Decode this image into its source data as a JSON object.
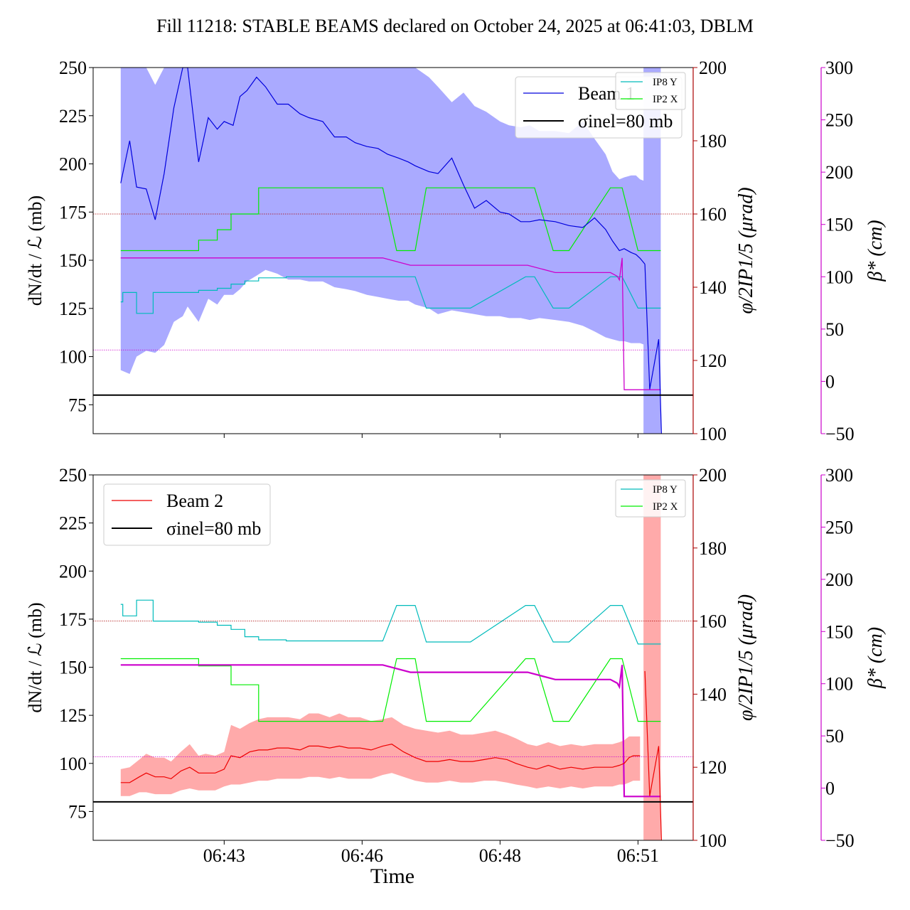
{
  "title": "Fill 11218: STABLE BEAMS declared on October 24, 2025 at 06:41:03, DBLM",
  "xlabel": "Time",
  "colors": {
    "beam1": "#0000dd",
    "beam1_band": "#aaaaff",
    "beam2": "#ee0000",
    "beam2_band": "#ffaaaa",
    "ip8y": "#00bbbb",
    "ip2x": "#00ee00",
    "phi": "#aa0000",
    "beta": "#cc00cc",
    "sigma": "#000000"
  },
  "chart_data": [
    {
      "type": "line",
      "panel": "top",
      "ylabel": "dN/dt / ℒ (mb)",
      "y2label": "φ/2IP1/5 (μrad)",
      "y3label": "β* (cm)",
      "ylim": [
        60,
        250
      ],
      "y2lim": [
        100,
        200
      ],
      "y3lim": [
        -50,
        300
      ],
      "x_ticks": [
        "06:43",
        "06:46",
        "06:48",
        "06:51"
      ],
      "x_tick_values": [
        6.5,
        8.5,
        10.5,
        12.5
      ],
      "xlim": [
        4.6,
        13.3
      ],
      "y_ticks": [
        75,
        100,
        125,
        150,
        175,
        200,
        225,
        250
      ],
      "y2_ticks": [
        100,
        120,
        140,
        160,
        180,
        200
      ],
      "y3_ticks": [
        -50,
        0,
        50,
        100,
        150,
        200,
        250,
        300
      ],
      "show_x_ticklabels": false,
      "legend": {
        "placement": "top-right",
        "entries": [
          "Beam 1",
          "σinel=80 mb"
        ]
      },
      "legend2": {
        "placement": "top-right",
        "entries": [
          "IP8 Y",
          "IP2 X"
        ]
      },
      "sigma_inel_mb": 80,
      "phi_ref_urad": 160,
      "beta_ref_cm": 30,
      "series": [
        {
          "name": "Beam 1",
          "role": "beam",
          "x": [
            5.0,
            5.13,
            5.23,
            5.37,
            5.5,
            5.63,
            5.77,
            5.9,
            5.97,
            6.13,
            6.27,
            6.4,
            6.5,
            6.63,
            6.73,
            6.83,
            6.97,
            7.1,
            7.27,
            7.43,
            7.6,
            7.73,
            7.93,
            8.1,
            8.27,
            8.4,
            8.57,
            8.73,
            8.87,
            9.03,
            9.17,
            9.27,
            9.47,
            9.6,
            9.8,
            9.97,
            10.13,
            10.3,
            10.5,
            10.63,
            10.8,
            10.93,
            11.07,
            11.3,
            11.5,
            11.7,
            11.87,
            12.03,
            12.13,
            12.23,
            12.3,
            12.4,
            12.47,
            12.53,
            12.6
          ],
          "values": [
            190,
            212,
            188,
            187,
            171,
            195,
            229,
            250,
            250,
            201,
            224,
            218,
            222,
            220,
            235,
            238,
            245,
            240,
            231,
            231,
            226,
            224,
            222,
            214,
            214,
            211,
            209,
            208,
            205,
            203,
            201,
            199,
            196,
            195,
            203,
            189,
            177,
            181,
            175,
            174,
            170,
            170,
            171,
            170,
            168,
            167,
            172,
            166,
            160,
            155,
            156,
            154,
            153,
            151,
            148
          ],
          "band_upper": [
            250,
            250,
            250,
            250,
            241,
            250,
            250,
            250,
            250,
            250,
            250,
            250,
            250,
            250,
            250,
            250,
            250,
            250,
            250,
            250,
            250,
            250,
            250,
            250,
            250,
            250,
            250,
            250,
            250,
            250,
            250,
            250,
            245,
            240,
            232,
            237,
            230,
            227,
            222,
            220,
            219,
            220,
            217,
            217,
            216,
            222,
            213,
            205,
            196,
            192,
            193,
            194,
            194,
            192,
            191
          ],
          "band_lower": [
            93,
            91,
            100,
            103,
            102,
            106,
            118,
            121,
            126,
            118,
            130,
            127,
            132,
            132,
            135,
            139,
            142,
            145,
            143,
            140,
            140,
            139,
            139,
            136,
            135,
            134,
            132,
            131,
            130,
            129,
            129,
            127,
            125,
            122,
            124,
            123,
            122,
            121,
            121,
            120,
            120,
            119,
            120,
            119,
            118,
            116,
            113,
            110,
            109,
            108,
            108,
            107,
            107,
            107,
            106
          ]
        },
        {
          "name": "IP8 Y",
          "role": "beta",
          "axis": "y3",
          "x": [
            5.0,
            5.03,
            5.03,
            5.23,
            5.23,
            5.47,
            5.47,
            5.7,
            5.7,
            6.13,
            6.13,
            6.4,
            6.4,
            6.6,
            6.6,
            6.8,
            6.8,
            7.0,
            7.0,
            7.4,
            7.4,
            8.8,
            9.0,
            9.27,
            9.43,
            10.07,
            10.87,
            11.0,
            11.27,
            11.5,
            12.1,
            12.27,
            12.5,
            12.83
          ],
          "values": [
            76,
            76,
            85,
            85,
            65,
            65,
            85,
            85,
            85,
            85,
            87,
            87,
            89,
            89,
            93,
            93,
            96,
            96,
            99,
            99,
            100,
            100,
            100,
            100,
            70,
            70,
            100,
            100,
            70,
            70,
            100,
            100,
            70,
            70
          ]
        },
        {
          "name": "IP2 X",
          "role": "beta",
          "axis": "y3",
          "x": [
            5.0,
            5.03,
            5.03,
            5.23,
            5.23,
            5.47,
            5.47,
            5.7,
            5.7,
            6.13,
            6.13,
            6.4,
            6.4,
            6.6,
            6.6,
            6.8,
            6.8,
            7.0,
            7.0,
            7.4,
            7.4,
            8.8,
            9.0,
            9.27,
            9.43,
            10.07,
            10.87,
            11.0,
            11.27,
            11.5,
            12.1,
            12.27,
            12.5,
            12.83
          ],
          "values": [
            125,
            125,
            125,
            125,
            125,
            125,
            125,
            125,
            125,
            125,
            135,
            135,
            145,
            145,
            160,
            160,
            160,
            160,
            185,
            185,
            185,
            185,
            125,
            125,
            185,
            185,
            185,
            185,
            125,
            125,
            185,
            185,
            125,
            125
          ]
        },
        {
          "name": "",
          "role": "phi",
          "x": [
            5.0,
            8.8,
            9.2,
            10.9,
            11.3,
            12.1,
            12.2,
            12.23,
            12.27,
            12.3,
            12.37,
            12.83
          ],
          "values": [
            148,
            148,
            146,
            146,
            144,
            144,
            143,
            142,
            148,
            112,
            112,
            112
          ]
        }
      ]
    },
    {
      "type": "line",
      "panel": "bottom",
      "ylabel": "dN/dt / ℒ (mb)",
      "y2label": "φ/2IP1/5 (μrad)",
      "y3label": "β* (cm)",
      "ylim": [
        60,
        250
      ],
      "y2lim": [
        100,
        200
      ],
      "y3lim": [
        -50,
        300
      ],
      "x_ticks": [
        "06:43",
        "06:46",
        "06:48",
        "06:51"
      ],
      "x_tick_values": [
        6.5,
        8.5,
        10.5,
        12.5
      ],
      "xlim": [
        4.6,
        13.3
      ],
      "y_ticks": [
        75,
        100,
        125,
        150,
        175,
        200,
        225,
        250
      ],
      "y2_ticks": [
        100,
        120,
        140,
        160,
        180,
        200
      ],
      "y3_ticks": [
        -50,
        0,
        50,
        100,
        150,
        200,
        250,
        300
      ],
      "show_x_ticklabels": true,
      "legend": {
        "placement": "top-left",
        "entries": [
          "Beam 2",
          "σinel=80 mb"
        ]
      },
      "legend2": {
        "placement": "top-right",
        "entries": [
          "IP8 Y",
          "IP2 X"
        ]
      },
      "sigma_inel_mb": 80,
      "phi_ref_urad": 160,
      "beta_ref_cm": 30,
      "series": [
        {
          "name": "Beam 2",
          "role": "beam",
          "x": [
            5.0,
            5.13,
            5.27,
            5.37,
            5.5,
            5.63,
            5.73,
            5.87,
            6.0,
            6.13,
            6.23,
            6.37,
            6.5,
            6.6,
            6.73,
            6.87,
            7.0,
            7.13,
            7.27,
            7.43,
            7.6,
            7.73,
            7.87,
            8.03,
            8.17,
            8.3,
            8.47,
            8.63,
            8.8,
            8.93,
            9.1,
            9.27,
            9.43,
            9.6,
            9.77,
            9.93,
            10.1,
            10.27,
            10.43,
            10.6,
            10.73,
            10.9,
            11.03,
            11.2,
            11.37,
            11.53,
            11.7,
            11.87,
            12.03,
            12.13,
            12.23,
            12.3,
            12.37,
            12.43,
            12.53
          ],
          "values": [
            90,
            90,
            93,
            95,
            93,
            93,
            92,
            96,
            98,
            95,
            95,
            95,
            97,
            104,
            103,
            106,
            107,
            107,
            108,
            108,
            107,
            109,
            109,
            108,
            109,
            108,
            108,
            107,
            109,
            110,
            106,
            103,
            101,
            101,
            102,
            101,
            101,
            102,
            103,
            102,
            100,
            98,
            97,
            99,
            97,
            98,
            97,
            98,
            98,
            98,
            99,
            100,
            103,
            104,
            104
          ],
          "band_upper": [
            97,
            98,
            102,
            105,
            103,
            103,
            101,
            106,
            110,
            104,
            105,
            104,
            106,
            120,
            118,
            121,
            123,
            124,
            124,
            124,
            123,
            126,
            126,
            124,
            126,
            124,
            124,
            122,
            123,
            124,
            120,
            118,
            117,
            116,
            117,
            115,
            115,
            116,
            117,
            115,
            113,
            110,
            109,
            111,
            109,
            110,
            109,
            110,
            110,
            110,
            111,
            112,
            114,
            114,
            114
          ],
          "band_lower": [
            83,
            83,
            85,
            85,
            84,
            84,
            84,
            86,
            87,
            86,
            86,
            86,
            88,
            89,
            89,
            90,
            91,
            91,
            92,
            92,
            92,
            93,
            93,
            92,
            93,
            92,
            92,
            92,
            94,
            95,
            93,
            91,
            90,
            90,
            91,
            90,
            90,
            91,
            91,
            90,
            89,
            88,
            87,
            88,
            87,
            88,
            87,
            88,
            88,
            88,
            89,
            89,
            90,
            91,
            91
          ]
        },
        {
          "name": "IP8 Y",
          "role": "beta",
          "axis": "y3",
          "x": [
            5.0,
            5.03,
            5.03,
            5.23,
            5.23,
            5.47,
            5.47,
            5.7,
            5.7,
            6.13,
            6.13,
            6.4,
            6.4,
            6.6,
            6.6,
            6.8,
            6.8,
            7.0,
            7.0,
            7.4,
            7.4,
            8.8,
            9.0,
            9.27,
            9.43,
            10.07,
            10.87,
            11.0,
            11.27,
            11.5,
            12.1,
            12.27,
            12.5,
            12.83
          ],
          "values": [
            176,
            176,
            165,
            165,
            180,
            180,
            160,
            160,
            160,
            160,
            159,
            159,
            156,
            156,
            152,
            152,
            145,
            145,
            142,
            142,
            141,
            141,
            175,
            175,
            140,
            140,
            175,
            175,
            140,
            140,
            175,
            175,
            138,
            138
          ]
        },
        {
          "name": "IP2 X",
          "role": "beta",
          "axis": "y3",
          "x": [
            5.0,
            5.03,
            5.03,
            5.23,
            5.23,
            5.47,
            5.47,
            5.7,
            5.7,
            6.13,
            6.13,
            6.4,
            6.4,
            6.6,
            6.6,
            6.8,
            6.8,
            7.0,
            7.0,
            7.4,
            7.4,
            8.8,
            9.0,
            9.27,
            9.43,
            10.07,
            10.87,
            11.0,
            11.27,
            11.5,
            12.1,
            12.27,
            12.5,
            12.83
          ],
          "values": [
            124,
            124,
            124,
            124,
            124,
            124,
            124,
            124,
            124,
            124,
            117,
            117,
            117,
            117,
            99,
            99,
            99,
            99,
            64,
            64,
            64,
            64,
            124,
            124,
            64,
            64,
            124,
            124,
            64,
            64,
            124,
            124,
            64,
            64
          ]
        },
        {
          "name": "",
          "role": "phi",
          "x": [
            5.0,
            8.8,
            9.2,
            10.9,
            11.3,
            12.1,
            12.2,
            12.23,
            12.27,
            12.3,
            12.37,
            12.83
          ],
          "values": [
            148,
            148,
            146,
            146,
            144,
            144,
            143,
            142,
            148,
            112,
            112,
            112
          ]
        }
      ]
    }
  ]
}
